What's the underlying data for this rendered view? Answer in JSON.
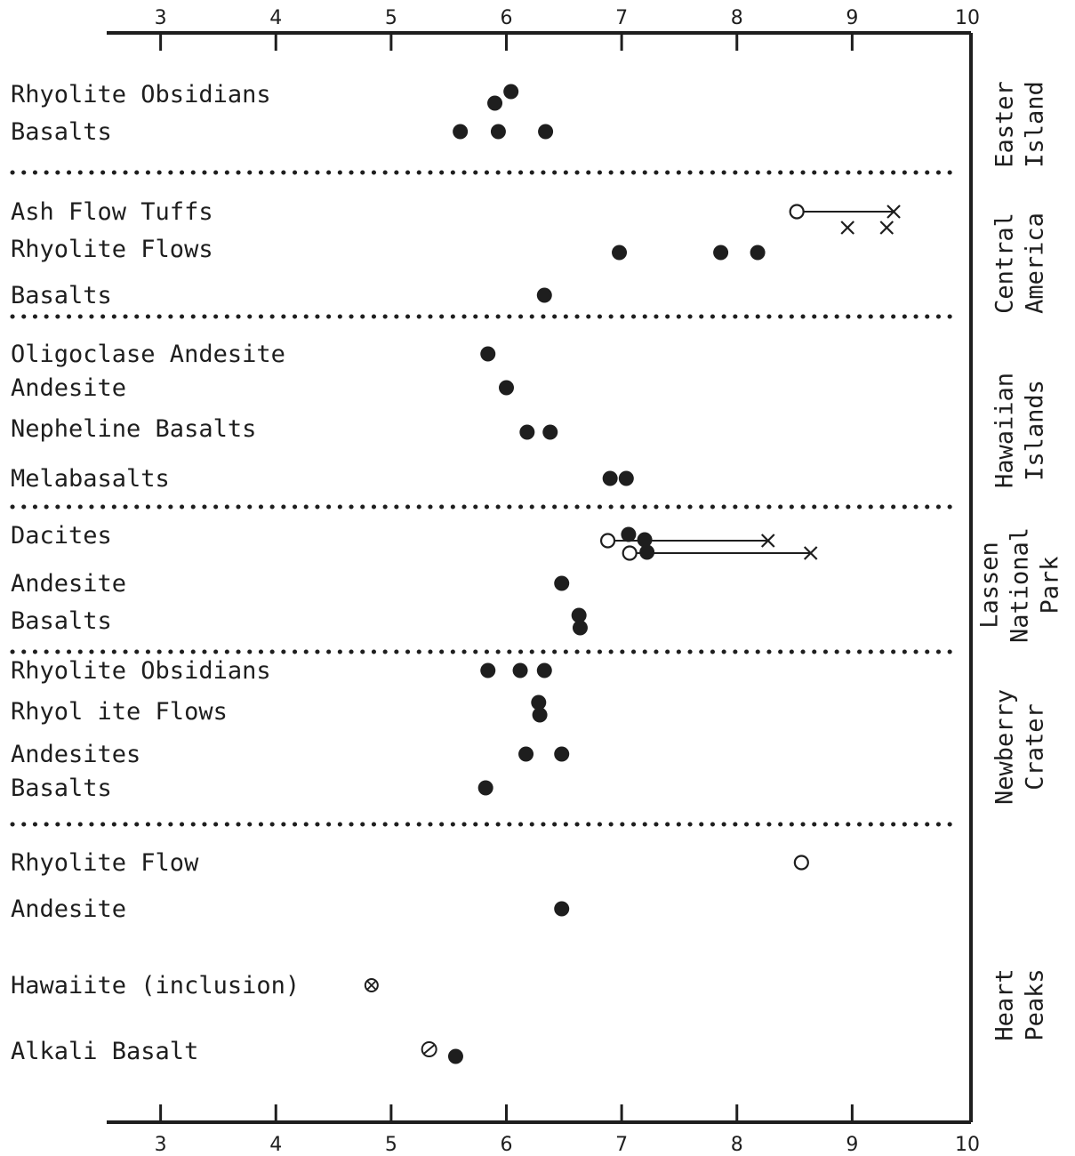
{
  "chart_data": {
    "type": "scatter",
    "title": "",
    "xlabel": "",
    "ylabel": "",
    "xlim": [
      2,
      10
    ],
    "xticks": [
      3,
      4,
      5,
      6,
      7,
      8,
      9,
      10
    ],
    "colors": {
      "ink": "#1e1e1e",
      "background": "#ffffff"
    },
    "groups": [
      {
        "region": [
          "Easter",
          "Island"
        ],
        "rows": [
          {
            "label": "Rhyolite Obsidians",
            "points": [
              {
                "x": 5.9,
                "marker": "filled"
              },
              {
                "x": 6.04,
                "marker": "filled"
              }
            ]
          },
          {
            "label": "Basalts",
            "points": [
              {
                "x": 5.6,
                "marker": "filled"
              },
              {
                "x": 5.93,
                "marker": "filled"
              },
              {
                "x": 6.34,
                "marker": "filled"
              }
            ]
          }
        ]
      },
      {
        "region": [
          "Central",
          "America"
        ],
        "rows": [
          {
            "label": "Ash Flow Tuffs",
            "points": [
              {
                "x": 8.52,
                "marker": "open"
              },
              {
                "x": 9.36,
                "marker": "cross"
              },
              {
                "x": 8.96,
                "marker": "cross"
              },
              {
                "x": 9.3,
                "marker": "cross"
              }
            ],
            "ranges": [
              {
                "from": 8.52,
                "to": 9.36
              }
            ]
          },
          {
            "label": "Rhyolite Flows",
            "points": [
              {
                "x": 6.98,
                "marker": "filled"
              },
              {
                "x": 7.86,
                "marker": "filled"
              },
              {
                "x": 8.18,
                "marker": "filled"
              }
            ]
          },
          {
            "label": "Basalts",
            "points": [
              {
                "x": 6.33,
                "marker": "filled"
              }
            ]
          }
        ]
      },
      {
        "region": [
          "Hawaiian",
          "Islands"
        ],
        "rows": [
          {
            "label": "Oligoclase Andesite",
            "points": [
              {
                "x": 5.84,
                "marker": "filled"
              }
            ]
          },
          {
            "label": "Andesite",
            "points": [
              {
                "x": 6.0,
                "marker": "filled"
              }
            ]
          },
          {
            "label": "Nepheline Basalts",
            "points": [
              {
                "x": 6.18,
                "marker": "filled"
              },
              {
                "x": 6.38,
                "marker": "filled"
              }
            ]
          },
          {
            "label": "Melabasalts",
            "points": [
              {
                "x": 6.9,
                "marker": "filled"
              },
              {
                "x": 7.04,
                "marker": "filled"
              }
            ]
          }
        ]
      },
      {
        "region": [
          "Lassen",
          "National",
          "Park"
        ],
        "rows": [
          {
            "label": "Dacites",
            "points": [
              {
                "x": 6.88,
                "marker": "open"
              },
              {
                "x": 7.07,
                "marker": "open"
              },
              {
                "x": 7.06,
                "marker": "filled"
              },
              {
                "x": 7.2,
                "marker": "filled"
              },
              {
                "x": 7.22,
                "marker": "filled"
              },
              {
                "x": 8.27,
                "marker": "cross"
              },
              {
                "x": 8.64,
                "marker": "cross"
              }
            ],
            "ranges": [
              {
                "from": 6.88,
                "to": 8.27
              },
              {
                "from": 7.07,
                "to": 8.64
              }
            ]
          },
          {
            "label": "Andesite",
            "points": [
              {
                "x": 6.48,
                "marker": "filled"
              }
            ]
          },
          {
            "label": "Basalts",
            "points": [
              {
                "x": 6.63,
                "marker": "filled"
              },
              {
                "x": 6.64,
                "marker": "filled"
              }
            ]
          }
        ]
      },
      {
        "region": [
          "Newberry",
          "Crater"
        ],
        "rows": [
          {
            "label": "Rhyolite Obsidians",
            "points": [
              {
                "x": 5.84,
                "marker": "filled"
              },
              {
                "x": 6.12,
                "marker": "filled"
              },
              {
                "x": 6.33,
                "marker": "filled"
              }
            ]
          },
          {
            "label": "Rhyol ite Flows",
            "points": [
              {
                "x": 6.28,
                "marker": "filled"
              },
              {
                "x": 6.29,
                "marker": "filled"
              }
            ]
          },
          {
            "label": "Andesites",
            "points": [
              {
                "x": 6.17,
                "marker": "filled"
              },
              {
                "x": 6.48,
                "marker": "filled"
              }
            ]
          },
          {
            "label": "Basalts",
            "points": [
              {
                "x": 5.82,
                "marker": "filled"
              }
            ]
          }
        ]
      },
      {
        "region": [
          "Heart",
          "Peaks"
        ],
        "rows": [
          {
            "label": "Rhyolite Flow",
            "points": [
              {
                "x": 8.56,
                "marker": "open"
              }
            ]
          },
          {
            "label": "Andesite",
            "points": [
              {
                "x": 6.48,
                "marker": "filled"
              }
            ]
          },
          {
            "label": "Hawaiite (inclusion)",
            "points": [
              {
                "x": 4.83,
                "marker": "crossed-circle"
              }
            ]
          },
          {
            "label": "Alkali Basalt",
            "points": [
              {
                "x": 5.33,
                "marker": "slashed-circle"
              },
              {
                "x": 5.56,
                "marker": "filled"
              }
            ]
          }
        ]
      }
    ]
  }
}
